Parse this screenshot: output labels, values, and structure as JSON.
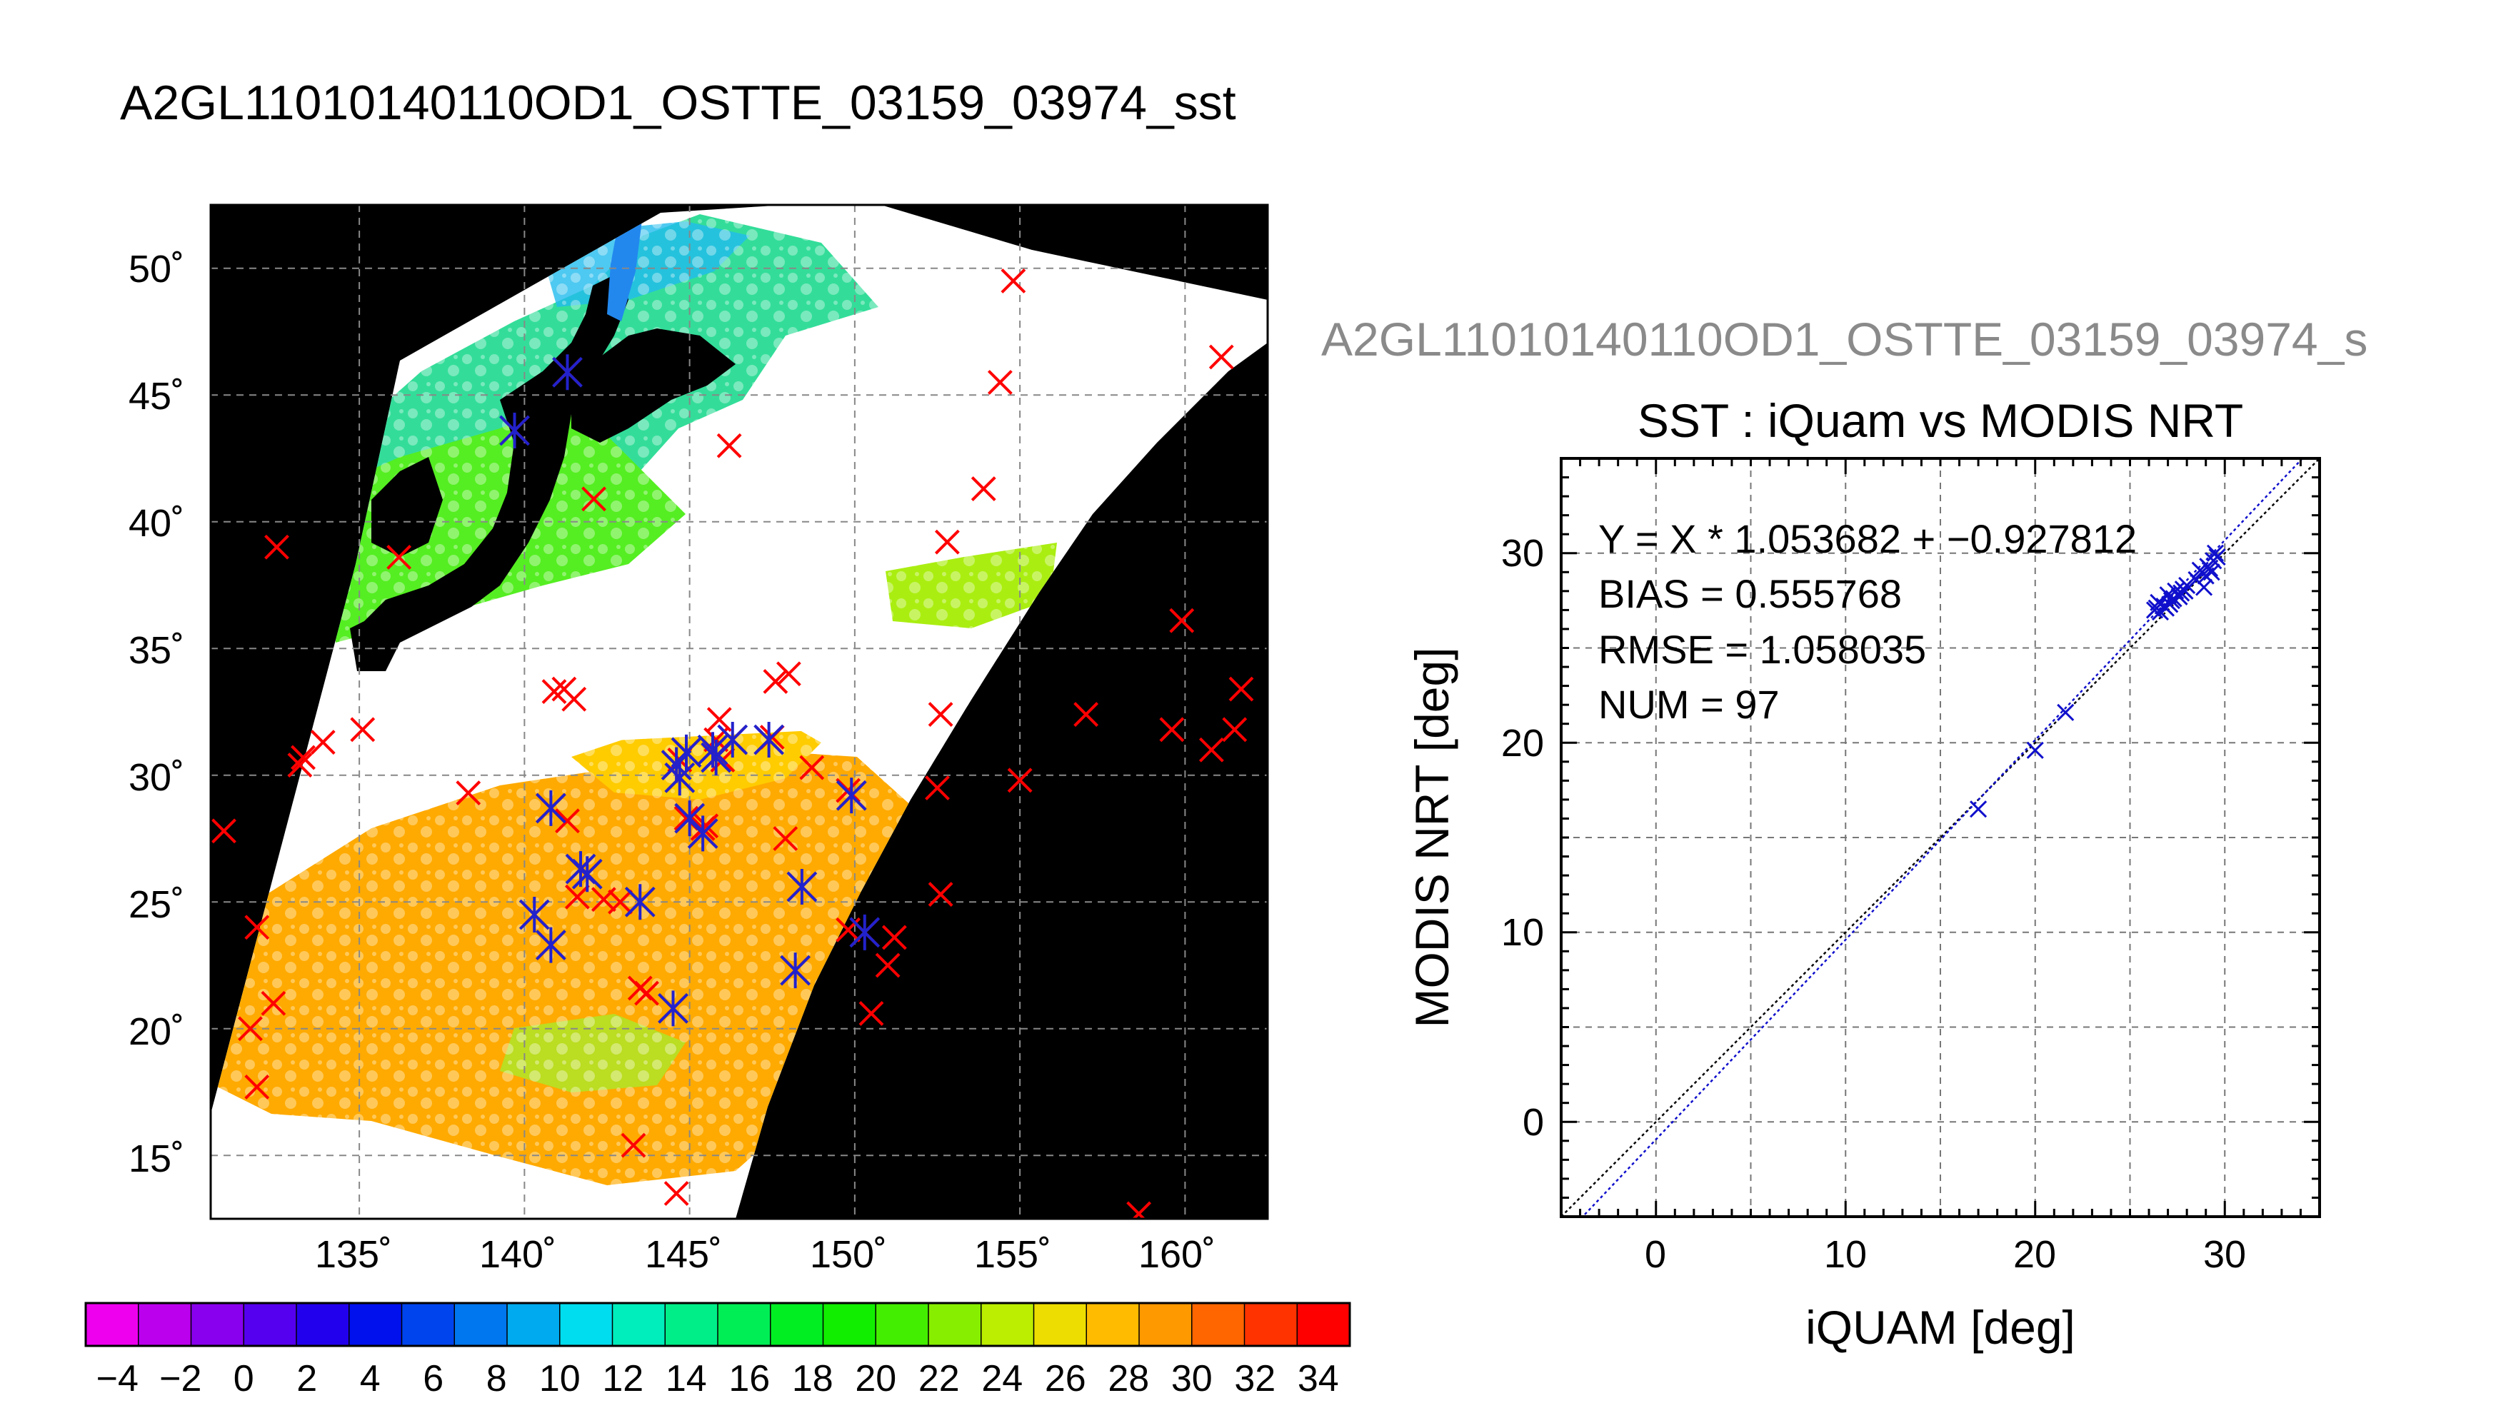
{
  "figure": {
    "map_title": "A2GL11010140110OD1_OSTTE_03159_03974_sst",
    "scatter_banner": "A2GL11010140110OD1_OSTTE_03159_03974_s"
  },
  "map": {
    "lon_ticks": [
      "135˚",
      "140˚",
      "145˚",
      "150˚",
      "155˚",
      "160˚"
    ],
    "lat_ticks": [
      "50˚",
      "45˚",
      "40˚",
      "35˚",
      "30˚",
      "25˚",
      "20˚",
      "15˚"
    ],
    "colorbar_ticks": [
      "−4",
      "−2",
      "0",
      "2",
      "4",
      "6",
      "8",
      "10",
      "12",
      "14",
      "16",
      "18",
      "20",
      "22",
      "24",
      "26",
      "28",
      "30",
      "32",
      "34"
    ],
    "colorbar_colors": [
      "#ee00ee",
      "#bb00ee",
      "#8800ee",
      "#5500ee",
      "#2200ee",
      "#0011ee",
      "#0044ee",
      "#0077ee",
      "#00aaee",
      "#00ddee",
      "#00eebb",
      "#00ee88",
      "#00ee55",
      "#00ee22",
      "#11ee00",
      "#44ee00",
      "#88ee00",
      "#bbee00",
      "#eedd00",
      "#ffbb00",
      "#ff9900",
      "#ff6600",
      "#ff3300",
      "#ff0000"
    ],
    "colors": {
      "land": "#000000",
      "cloud": "#ffffff",
      "sea_north": "#22cc88",
      "sea_mid": "#55ee11",
      "sea_south": "#ffaa00",
      "cross_red": "#ff0000",
      "cross_blue": "#2222cc"
    },
    "red_crosses": [
      [
        161.1,
        46.5
      ],
      [
        154.8,
        49.5
      ],
      [
        154.4,
        45.5
      ],
      [
        146.2,
        43.0
      ],
      [
        153.9,
        41.3
      ],
      [
        142.1,
        40.9
      ],
      [
        132.5,
        39.0
      ],
      [
        136.2,
        38.6
      ],
      [
        152.8,
        39.2
      ],
      [
        159.9,
        36.1
      ],
      [
        157.0,
        32.4
      ],
      [
        159.6,
        31.8
      ],
      [
        160.8,
        31.0
      ],
      [
        161.5,
        31.8
      ],
      [
        161.7,
        33.4
      ],
      [
        148.0,
        34.0
      ],
      [
        147.6,
        33.7
      ],
      [
        140.9,
        33.3
      ],
      [
        141.5,
        33.0
      ],
      [
        141.2,
        33.4
      ],
      [
        152.6,
        32.4
      ],
      [
        135.1,
        31.8
      ],
      [
        133.9,
        31.3
      ],
      [
        133.3,
        30.7
      ],
      [
        133.2,
        30.4
      ],
      [
        148.7,
        30.3
      ],
      [
        152.5,
        29.5
      ],
      [
        155.0,
        29.8
      ],
      [
        138.3,
        29.3
      ],
      [
        141.3,
        28.2
      ],
      [
        147.9,
        27.5
      ],
      [
        144.9,
        28.3
      ],
      [
        145.5,
        28.0
      ],
      [
        145.4,
        27.9
      ],
      [
        130.9,
        27.8
      ],
      [
        152.6,
        25.3
      ],
      [
        142.9,
        25.0
      ],
      [
        131.9,
        24.0
      ],
      [
        149.8,
        23.9
      ],
      [
        151.2,
        23.6
      ],
      [
        151.0,
        22.5
      ],
      [
        143.5,
        21.6
      ],
      [
        143.7,
        21.4
      ],
      [
        132.4,
        21.0
      ],
      [
        131.7,
        20.0
      ],
      [
        150.5,
        20.6
      ],
      [
        131.9,
        17.7
      ],
      [
        143.3,
        15.4
      ],
      [
        144.6,
        13.5
      ],
      [
        158.6,
        12.7
      ],
      [
        145.8,
        31.4
      ],
      [
        146.0,
        30.6
      ],
      [
        147.5,
        31.5
      ],
      [
        145.9,
        32.2
      ],
      [
        144.7,
        30.6
      ],
      [
        149.8,
        29.4
      ],
      [
        141.6,
        25.2
      ],
      [
        142.4,
        25.1
      ]
    ],
    "blue_matches": [
      [
        139.7,
        43.6
      ],
      [
        141.3,
        45.9
      ],
      [
        140.8,
        28.7
      ],
      [
        141.7,
        26.3
      ],
      [
        141.9,
        26.1
      ],
      [
        140.3,
        24.5
      ],
      [
        140.8,
        23.3
      ],
      [
        143.5,
        25.0
      ],
      [
        144.5,
        20.8
      ],
      [
        144.6,
        30.4
      ],
      [
        144.7,
        29.9
      ],
      [
        145.0,
        28.3
      ],
      [
        145.4,
        27.7
      ],
      [
        146.3,
        31.4
      ],
      [
        145.7,
        31.0
      ],
      [
        147.4,
        31.4
      ],
      [
        149.9,
        29.2
      ],
      [
        148.4,
        25.6
      ],
      [
        148.2,
        22.3
      ],
      [
        150.3,
        23.8
      ],
      [
        144.9,
        30.9
      ],
      [
        145.8,
        30.7
      ]
    ]
  },
  "scatter": {
    "title": "SST : iQuam vs MODIS NRT",
    "xlabel": "iQUAM [deg]",
    "ylabel": "MODIS NRT [deg]",
    "stats": [
      "Y = X * 1.053682 + −0.927812",
      "BIAS = 0.555768",
      "RMSE = 1.058035",
      "NUM = 97"
    ],
    "x_ticks": [
      "0",
      "10",
      "20",
      "30"
    ],
    "y_ticks": [
      "0",
      "10",
      "20",
      "30"
    ],
    "point_color": "#1010cc"
  },
  "chart_data": [
    {
      "type": "scatter",
      "title": "SST : iQuam vs MODIS NRT",
      "xlabel": "iQUAM [deg]",
      "ylabel": "MODIS NRT [deg]",
      "xlim": [
        -5,
        35
      ],
      "ylim": [
        -5,
        35
      ],
      "grid": true,
      "fit": {
        "slope": 1.053682,
        "intercept": -0.927812
      },
      "bias": 0.555768,
      "rmse": 1.058035,
      "num": 97,
      "x": [
        17.0,
        20.0,
        21.6,
        26.3,
        26.5,
        26.8,
        27.0,
        27.2,
        27.4,
        27.6,
        27.8,
        28.0,
        26.6,
        26.9,
        27.3,
        27.7,
        28.5,
        28.8,
        29.0,
        29.2,
        29.4,
        29.5,
        28.9,
        29.1,
        29.3,
        29.6,
        28.7,
        27.1,
        26.4,
        27.9
      ],
      "y": [
        16.5,
        19.6,
        21.6,
        27.0,
        27.4,
        27.2,
        27.8,
        27.5,
        28.0,
        27.7,
        28.1,
        28.3,
        26.9,
        27.1,
        27.6,
        27.9,
        28.6,
        29.0,
        28.8,
        29.2,
        29.6,
        30.0,
        28.2,
        29.3,
        29.0,
        29.8,
        29.1,
        27.3,
        27.1,
        28.0
      ]
    },
    {
      "type": "heatmap",
      "title": "A2GL11010140110OD1_OSTTE_03159_03974_sst",
      "xlabel": "",
      "ylabel": "",
      "xlim": [
        130.5,
        162.5
      ],
      "ylim": [
        12.5,
        52.5
      ],
      "colorbar_range": [
        -5,
        35
      ]
    }
  ]
}
